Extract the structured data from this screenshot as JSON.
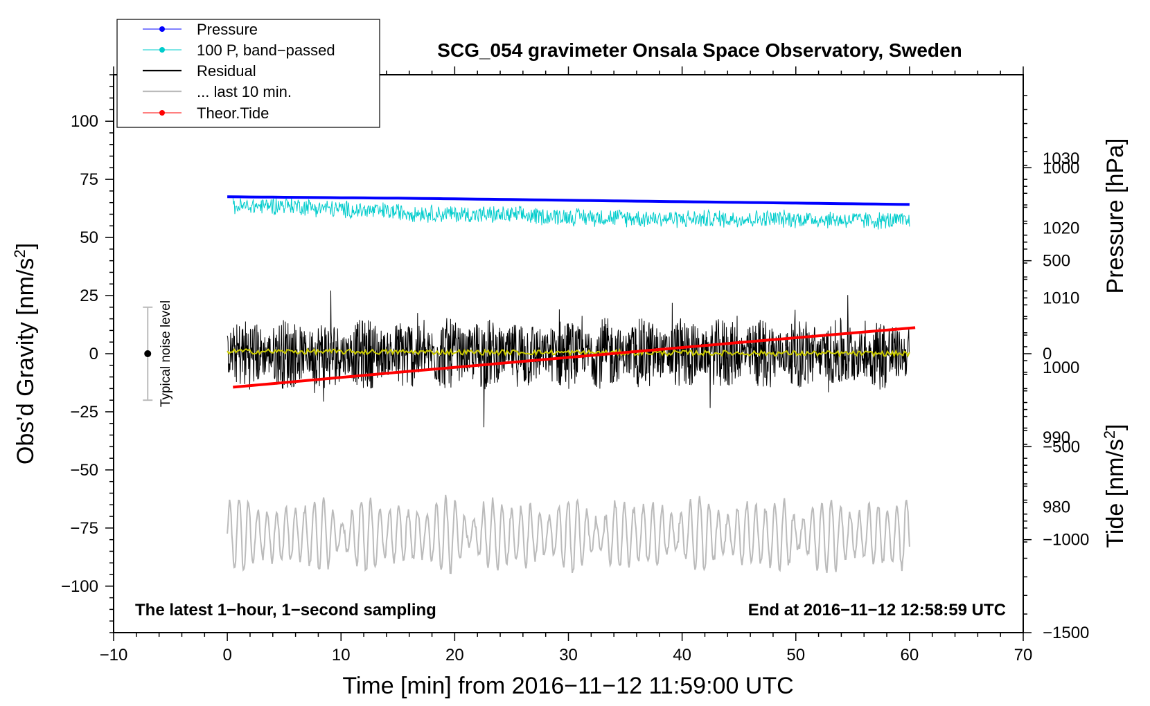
{
  "chart_data": {
    "type": "line",
    "title": "SCG_054 gravimeter Onsala Space Observatory, Sweden",
    "xlabel": "Time [min] from 2016−11−12 11:59:00 UTC",
    "ylabel_main": "Obs’d Gravity [nm/s",
    "ylabel_main_sup": "2",
    "ylabel_main_end": "]",
    "ylabel_pressure": "Pressure [hPa]",
    "ylabel_tide": "Tide [nm/s",
    "ylabel_tide_sup": "2",
    "ylabel_tide_end": "]",
    "xlim": [
      -10,
      70
    ],
    "ylim": [
      -120,
      120
    ],
    "pressure_lim": [
      962.0,
      1042.0
    ],
    "tide_lim": [
      -1500,
      1500
    ],
    "x_ticks": [
      {
        "v": -10,
        "t": "−10"
      },
      {
        "v": 0,
        "t": "0"
      },
      {
        "v": 10,
        "t": "10"
      },
      {
        "v": 20,
        "t": "20"
      },
      {
        "v": 30,
        "t": "30"
      },
      {
        "v": 40,
        "t": "40"
      },
      {
        "v": 50,
        "t": "50"
      },
      {
        "v": 60,
        "t": "60"
      },
      {
        "v": 70,
        "t": "70"
      }
    ],
    "y_ticks": [
      {
        "v": 100,
        "t": "100"
      },
      {
        "v": 75,
        "t": "75"
      },
      {
        "v": 50,
        "t": "50"
      },
      {
        "v": 25,
        "t": "25"
      },
      {
        "v": 0,
        "t": "0"
      },
      {
        "v": -25,
        "t": "−25"
      },
      {
        "v": -50,
        "t": "−50"
      },
      {
        "v": -75,
        "t": "−75"
      },
      {
        "v": -100,
        "t": "−100"
      }
    ],
    "pressure_ticks": [
      {
        "v": 1030,
        "t": "1030"
      },
      {
        "v": 1020,
        "t": "1020"
      },
      {
        "v": 1010,
        "t": "1010"
      },
      {
        "v": 1000,
        "t": "1000"
      },
      {
        "v": 990,
        "t": "990"
      },
      {
        "v": 980,
        "t": "980"
      }
    ],
    "tide_ticks": [
      {
        "v": 1000,
        "t": "1000"
      },
      {
        "v": 500,
        "t": "500"
      },
      {
        "v": 0,
        "t": "0"
      },
      {
        "v": -500,
        "t": "−500"
      },
      {
        "v": -1000,
        "t": "−1000"
      },
      {
        "v": -1500,
        "t": "−1500"
      }
    ],
    "series": [
      {
        "name": "Pressure",
        "color": "#0000ff",
        "axis": "pressure",
        "x": [
          0,
          15,
          30,
          45,
          60
        ],
        "values": [
          1024.5,
          1024.3,
          1024.0,
          1023.7,
          1023.4
        ]
      },
      {
        "name": "100 P, band−passed",
        "color": "#00cccc",
        "axis": "gravity",
        "x": [
          0,
          5,
          10,
          20,
          30,
          40,
          50,
          60
        ],
        "values": [
          63,
          64,
          62,
          60,
          59,
          58,
          58,
          57
        ],
        "amplitude": 4
      },
      {
        "name": "Residual",
        "color": "#000000",
        "axis": "gravity",
        "x": [
          0,
          60
        ],
        "values": [
          0,
          0
        ],
        "amplitude": 12
      },
      {
        "name": "... last 10 min.",
        "color": "#bbbbbb",
        "axis": "gravity",
        "x": [
          0,
          60
        ],
        "values": [
          -78,
          -78
        ],
        "amplitude": 14
      },
      {
        "name": "Theor.Tide",
        "color": "#ff0000",
        "axis": "tide",
        "x": [
          0.5,
          15,
          30,
          45,
          60.5
        ],
        "values": [
          -180,
          -100,
          -20,
          60,
          140
        ]
      }
    ],
    "smoothed_residual": {
      "color": "#cccc00",
      "values": [
        1,
        0
      ]
    },
    "legend": {
      "position": "top-left",
      "entries": [
        {
          "label": "Pressure",
          "color": "#0000ff",
          "marker": true
        },
        {
          "label": "100 P, band−passed",
          "color": "#00cccc",
          "marker": true
        },
        {
          "label": "Residual",
          "color": "#000000",
          "marker": false
        },
        {
          "label": "... last 10 min.",
          "color": "#bbbbbb",
          "marker": false
        },
        {
          "label": "Theor.Tide",
          "color": "#ff0000",
          "marker": true
        }
      ]
    },
    "noise_indicator": {
      "label": "Typical noise level",
      "x": -7,
      "center": 0,
      "half_range": 20
    },
    "annotations": {
      "bottom_left": "The latest 1−hour, 1−second sampling",
      "bottom_right": "End at 2016−11−12 12:58:59 UTC"
    }
  }
}
